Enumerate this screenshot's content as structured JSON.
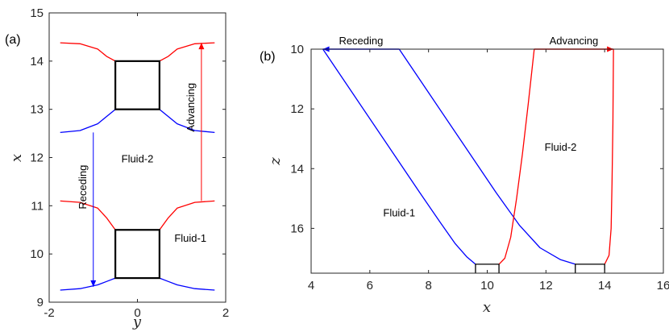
{
  "chart_data": [
    {
      "panel_label": "(a)",
      "type": "line",
      "xlabel": "y",
      "ylabel": "x",
      "xlim": [
        -2,
        2
      ],
      "ylim": [
        9,
        15
      ],
      "xticks": [
        "-2",
        "0",
        "2"
      ],
      "yticks": [
        "9",
        "10",
        "11",
        "12",
        "13",
        "14",
        "15"
      ],
      "grid": false,
      "colors": {
        "advancing": "#ff0000",
        "receding": "#0000ff",
        "obstacle": "#000000"
      },
      "curves": {
        "red_top_left": [
          [
            -1.75,
            14.38
          ],
          [
            -1.3,
            14.36
          ],
          [
            -0.9,
            14.25
          ],
          [
            -0.7,
            14.1
          ],
          [
            -0.5,
            14.0
          ]
        ],
        "red_top_right": [
          [
            0.5,
            14.0
          ],
          [
            0.7,
            14.1
          ],
          [
            0.9,
            14.25
          ],
          [
            1.3,
            14.36
          ],
          [
            1.75,
            14.38
          ]
        ],
        "blue_top_left": [
          [
            -1.75,
            12.52
          ],
          [
            -1.3,
            12.56
          ],
          [
            -0.9,
            12.7
          ],
          [
            -0.7,
            12.85
          ],
          [
            -0.5,
            13.0
          ]
        ],
        "blue_top_right": [
          [
            0.5,
            13.0
          ],
          [
            0.7,
            12.85
          ],
          [
            0.9,
            12.7
          ],
          [
            1.3,
            12.56
          ],
          [
            1.75,
            12.52
          ]
        ],
        "red_bot_left": [
          [
            -1.75,
            11.1
          ],
          [
            -1.3,
            11.07
          ],
          [
            -0.9,
            10.95
          ],
          [
            -0.7,
            10.75
          ],
          [
            -0.5,
            10.5
          ]
        ],
        "red_bot_right": [
          [
            0.5,
            10.5
          ],
          [
            0.7,
            10.75
          ],
          [
            0.9,
            10.95
          ],
          [
            1.3,
            11.07
          ],
          [
            1.75,
            11.1
          ]
        ],
        "blue_bot_left": [
          [
            -1.75,
            9.25
          ],
          [
            -1.3,
            9.28
          ],
          [
            -0.9,
            9.36
          ],
          [
            -0.7,
            9.43
          ],
          [
            -0.5,
            9.5
          ]
        ],
        "blue_bot_right": [
          [
            0.5,
            9.5
          ],
          [
            0.7,
            9.43
          ],
          [
            0.9,
            9.36
          ],
          [
            1.3,
            9.28
          ],
          [
            1.75,
            9.25
          ]
        ]
      },
      "obstacles": [
        {
          "y0": -0.5,
          "y1": 0.5,
          "x0": 13.0,
          "x1": 14.0
        },
        {
          "y0": -0.5,
          "y1": 0.5,
          "x0": 9.5,
          "x1": 10.5
        }
      ],
      "arrows": [
        {
          "label": "Receding",
          "color": "#0000ff",
          "y": -1.0,
          "from": 12.52,
          "to": 9.32
        },
        {
          "label": "Advancing",
          "color": "#ff0000",
          "y": 1.45,
          "from": 11.1,
          "to": 14.38
        }
      ],
      "annotations": [
        {
          "text": "Fluid-2",
          "y": 0.0,
          "x": 11.9
        },
        {
          "text": "Fluid-1",
          "y": 1.2,
          "x": 10.25
        }
      ]
    },
    {
      "panel_label": "(b)",
      "type": "line",
      "xlabel": "x",
      "ylabel": "z",
      "xlim": [
        4,
        16
      ],
      "ylim": [
        10,
        17.5
      ],
      "y_reversed": true,
      "xticks": [
        "4",
        "6",
        "8",
        "10",
        "12",
        "14",
        "16"
      ],
      "yticks": [
        "10",
        "12",
        "14",
        "16"
      ],
      "grid": false,
      "curves": {
        "blue_1": [
          [
            4.4,
            10.0
          ],
          [
            5.5,
            11.6
          ],
          [
            6.6,
            13.2
          ],
          [
            7.7,
            14.8
          ],
          [
            8.4,
            15.8
          ],
          [
            8.9,
            16.5
          ],
          [
            9.3,
            16.95
          ],
          [
            9.6,
            17.2
          ]
        ],
        "blue_2": [
          [
            7.0,
            10.0
          ],
          [
            8.1,
            11.6
          ],
          [
            9.2,
            13.2
          ],
          [
            10.3,
            14.8
          ],
          [
            11.1,
            15.9
          ],
          [
            11.8,
            16.65
          ],
          [
            12.5,
            17.05
          ],
          [
            13.0,
            17.2
          ]
        ],
        "red_1": [
          [
            11.6,
            10.0
          ],
          [
            11.4,
            11.8
          ],
          [
            11.2,
            13.5
          ],
          [
            11.0,
            15.0
          ],
          [
            10.8,
            16.3
          ],
          [
            10.6,
            17.0
          ],
          [
            10.4,
            17.2
          ]
        ],
        "red_2": [
          [
            14.3,
            10.0
          ],
          [
            14.28,
            12.5
          ],
          [
            14.25,
            14.5
          ],
          [
            14.22,
            16.0
          ],
          [
            14.15,
            16.9
          ],
          [
            14.0,
            17.2
          ]
        ]
      },
      "obstacles": [
        {
          "x0": 9.6,
          "x1": 10.4,
          "z0": 17.2,
          "z1": 17.5
        },
        {
          "x0": 13.0,
          "x1": 14.0,
          "z0": 17.2,
          "z1": 17.5
        }
      ],
      "arrows": [
        {
          "label": "Receding",
          "color": "#0000ff",
          "from": 7.0,
          "to": 4.4
        },
        {
          "label": "Advancing",
          "color": "#ff0000",
          "from": 11.6,
          "to": 14.3
        }
      ],
      "annotations": [
        {
          "text": "Fluid-2",
          "x": 12.5,
          "z": 13.4
        },
        {
          "text": "Fluid-1",
          "x": 7.0,
          "z": 15.6
        }
      ]
    }
  ]
}
